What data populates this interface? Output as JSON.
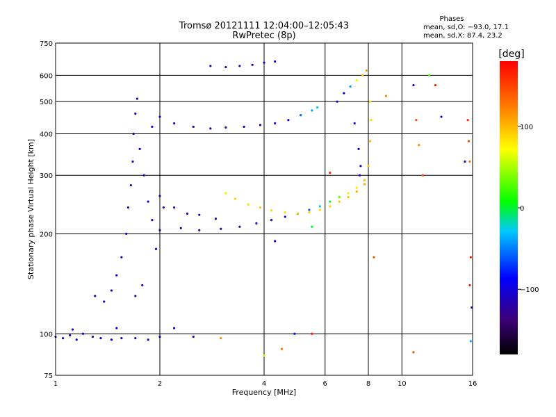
{
  "header": {
    "title_line1": "Tromsø 20121111 12:04:00–12:05:43",
    "title_line2": "RwPretec (8p)",
    "stats_title": "Phases",
    "stats_line1": "mean, sd,O: −93.0, 17.1",
    "stats_line2": "mean, sd,X: 87.4, 23.2"
  },
  "colorbar": {
    "unit": "[deg]",
    "range": [
      -180,
      180
    ],
    "tick_labels": [
      "100",
      "0",
      "−100"
    ],
    "tick_values": [
      100,
      0,
      -100
    ]
  },
  "chart_data": {
    "type": "scatter",
    "xlabel": "Frequency [MHz]",
    "ylabel": "Stationary phase Virtual Height [km]",
    "x_scale": "log",
    "y_scale": "log",
    "xlim": [
      1,
      16
    ],
    "ylim": [
      75,
      750
    ],
    "grid": true,
    "x_ticks": [
      1,
      2,
      4,
      6,
      8,
      10,
      16
    ],
    "x_tick_labels": [
      "1",
      "2",
      "4",
      "6",
      "8",
      "10",
      "16"
    ],
    "y_ticks": [
      75,
      100,
      200,
      300,
      400,
      500,
      600,
      750
    ],
    "y_tick_labels": [
      "75",
      "100",
      "200",
      "300",
      "400",
      "500",
      "600",
      "750"
    ],
    "series": [
      {
        "points": [
          {
            "x": 1.0,
            "y": 98,
            "p": -110
          },
          {
            "x": 1.05,
            "y": 97,
            "p": -105
          },
          {
            "x": 1.1,
            "y": 99,
            "p": -112
          },
          {
            "x": 1.15,
            "y": 96,
            "p": -108
          },
          {
            "x": 1.2,
            "y": 100,
            "p": -100
          },
          {
            "x": 1.28,
            "y": 98,
            "p": -115
          },
          {
            "x": 1.35,
            "y": 97,
            "p": -110
          },
          {
            "x": 1.45,
            "y": 96,
            "p": -102
          },
          {
            "x": 1.55,
            "y": 97,
            "p": -118
          },
          {
            "x": 1.7,
            "y": 97,
            "p": -110
          },
          {
            "x": 1.85,
            "y": 96,
            "p": -105
          },
          {
            "x": 2.0,
            "y": 98,
            "p": -112
          },
          {
            "x": 1.12,
            "y": 103,
            "p": -85
          },
          {
            "x": 1.5,
            "y": 104,
            "p": -95
          },
          {
            "x": 2.2,
            "y": 104,
            "p": -100
          },
          {
            "x": 2.5,
            "y": 98,
            "p": -110
          },
          {
            "x": 1.3,
            "y": 130,
            "p": -110
          },
          {
            "x": 1.38,
            "y": 125,
            "p": -115
          },
          {
            "x": 1.45,
            "y": 135,
            "p": -105
          },
          {
            "x": 1.5,
            "y": 150,
            "p": -108
          },
          {
            "x": 1.55,
            "y": 170,
            "p": -112
          },
          {
            "x": 1.6,
            "y": 200,
            "p": -100
          },
          {
            "x": 1.62,
            "y": 240,
            "p": -110
          },
          {
            "x": 1.65,
            "y": 280,
            "p": -118
          },
          {
            "x": 1.67,
            "y": 330,
            "p": -105
          },
          {
            "x": 1.68,
            "y": 400,
            "p": -112
          },
          {
            "x": 1.7,
            "y": 460,
            "p": -108
          },
          {
            "x": 1.72,
            "y": 510,
            "p": -115
          },
          {
            "x": 1.75,
            "y": 360,
            "p": -100
          },
          {
            "x": 1.8,
            "y": 300,
            "p": -110
          },
          {
            "x": 1.85,
            "y": 250,
            "p": -105
          },
          {
            "x": 1.9,
            "y": 220,
            "p": -112
          },
          {
            "x": 1.95,
            "y": 180,
            "p": -110
          },
          {
            "x": 1.78,
            "y": 140,
            "p": -95
          },
          {
            "x": 1.7,
            "y": 130,
            "p": -108
          },
          {
            "x": 1.9,
            "y": 420,
            "p": -102
          },
          {
            "x": 2.0,
            "y": 260,
            "p": -108
          },
          {
            "x": 2.05,
            "y": 240,
            "p": -112
          },
          {
            "x": 2.0,
            "y": 450,
            "p": -105
          },
          {
            "x": 2.2,
            "y": 430,
            "p": -110
          },
          {
            "x": 2.5,
            "y": 420,
            "p": -112
          },
          {
            "x": 2.8,
            "y": 415,
            "p": -108
          },
          {
            "x": 3.1,
            "y": 418,
            "p": -115
          },
          {
            "x": 3.5,
            "y": 420,
            "p": -110
          },
          {
            "x": 3.9,
            "y": 425,
            "p": -105
          },
          {
            "x": 4.3,
            "y": 430,
            "p": -100
          },
          {
            "x": 4.7,
            "y": 440,
            "p": -95
          },
          {
            "x": 5.1,
            "y": 455,
            "p": -60
          },
          {
            "x": 5.5,
            "y": 470,
            "p": -40
          },
          {
            "x": 5.7,
            "y": 480,
            "p": -20
          },
          {
            "x": 2.8,
            "y": 640,
            "p": -110
          },
          {
            "x": 3.1,
            "y": 635,
            "p": -115
          },
          {
            "x": 3.4,
            "y": 640,
            "p": -108
          },
          {
            "x": 3.7,
            "y": 645,
            "p": -112
          },
          {
            "x": 4.0,
            "y": 655,
            "p": -105
          },
          {
            "x": 4.3,
            "y": 660,
            "p": -100
          },
          {
            "x": 2.0,
            "y": 205,
            "p": -120
          },
          {
            "x": 2.3,
            "y": 208,
            "p": -125
          },
          {
            "x": 2.6,
            "y": 205,
            "p": -130
          },
          {
            "x": 3.0,
            "y": 207,
            "p": -128
          },
          {
            "x": 3.4,
            "y": 210,
            "p": -125
          },
          {
            "x": 3.8,
            "y": 215,
            "p": -120
          },
          {
            "x": 4.2,
            "y": 220,
            "p": -110
          },
          {
            "x": 4.6,
            "y": 225,
            "p": -100
          },
          {
            "x": 5.0,
            "y": 230,
            "p": -80
          },
          {
            "x": 5.4,
            "y": 236,
            "p": -60
          },
          {
            "x": 5.8,
            "y": 242,
            "p": -30
          },
          {
            "x": 6.2,
            "y": 250,
            "p": 0
          },
          {
            "x": 6.6,
            "y": 258,
            "p": 30
          },
          {
            "x": 7.0,
            "y": 265,
            "p": 60
          },
          {
            "x": 7.4,
            "y": 275,
            "p": 80
          },
          {
            "x": 7.8,
            "y": 290,
            "p": 100
          },
          {
            "x": 2.2,
            "y": 240,
            "p": -110
          },
          {
            "x": 2.4,
            "y": 230,
            "p": -112
          },
          {
            "x": 2.6,
            "y": 228,
            "p": -108
          },
          {
            "x": 2.9,
            "y": 222,
            "p": -115
          },
          {
            "x": 3.1,
            "y": 265,
            "p": 80
          },
          {
            "x": 3.3,
            "y": 255,
            "p": 90
          },
          {
            "x": 3.6,
            "y": 245,
            "p": 85
          },
          {
            "x": 3.9,
            "y": 240,
            "p": 95
          },
          {
            "x": 4.2,
            "y": 235,
            "p": 90
          },
          {
            "x": 4.6,
            "y": 232,
            "p": 85
          },
          {
            "x": 5.0,
            "y": 230,
            "p": 95
          },
          {
            "x": 5.4,
            "y": 232,
            "p": 90
          },
          {
            "x": 5.8,
            "y": 236,
            "p": 88
          },
          {
            "x": 6.2,
            "y": 242,
            "p": 92
          },
          {
            "x": 6.6,
            "y": 250,
            "p": 95
          },
          {
            "x": 7.0,
            "y": 258,
            "p": 100
          },
          {
            "x": 7.4,
            "y": 268,
            "p": 105
          },
          {
            "x": 7.8,
            "y": 282,
            "p": 110
          },
          {
            "x": 8.0,
            "y": 320,
            "p": 95
          },
          {
            "x": 8.1,
            "y": 380,
            "p": 100
          },
          {
            "x": 8.15,
            "y": 440,
            "p": 90
          },
          {
            "x": 8.1,
            "y": 500,
            "p": 85
          },
          {
            "x": 6.5,
            "y": 500,
            "p": -100
          },
          {
            "x": 6.8,
            "y": 530,
            "p": -90
          },
          {
            "x": 7.1,
            "y": 555,
            "p": -40
          },
          {
            "x": 7.4,
            "y": 580,
            "p": 60
          },
          {
            "x": 7.7,
            "y": 600,
            "p": 100
          },
          {
            "x": 7.9,
            "y": 620,
            "p": 110
          },
          {
            "x": 7.3,
            "y": 430,
            "p": -110
          },
          {
            "x": 7.5,
            "y": 360,
            "p": -108
          },
          {
            "x": 7.6,
            "y": 320,
            "p": -100
          },
          {
            "x": 7.55,
            "y": 300,
            "p": -95
          },
          {
            "x": 8.3,
            "y": 170,
            "p": 140
          },
          {
            "x": 9.0,
            "y": 520,
            "p": 120
          },
          {
            "x": 10.8,
            "y": 560,
            "p": -100
          },
          {
            "x": 12.0,
            "y": 600,
            "p": 20
          },
          {
            "x": 12.5,
            "y": 560,
            "p": 170
          },
          {
            "x": 13.0,
            "y": 450,
            "p": -110
          },
          {
            "x": 11.0,
            "y": 440,
            "p": 150
          },
          {
            "x": 11.2,
            "y": 370,
            "p": 120
          },
          {
            "x": 11.5,
            "y": 300,
            "p": 150
          },
          {
            "x": 15.5,
            "y": 440,
            "p": 160
          },
          {
            "x": 15.6,
            "y": 380,
            "p": 150
          },
          {
            "x": 15.7,
            "y": 330,
            "p": 130
          },
          {
            "x": 15.2,
            "y": 330,
            "p": -110
          },
          {
            "x": 15.8,
            "y": 170,
            "p": 170
          },
          {
            "x": 15.7,
            "y": 140,
            "p": 170
          },
          {
            "x": 15.9,
            "y": 120,
            "p": -100
          },
          {
            "x": 15.8,
            "y": 95,
            "p": -40
          },
          {
            "x": 10.8,
            "y": 88,
            "p": 150
          },
          {
            "x": 6.2,
            "y": 305,
            "p": 170
          },
          {
            "x": 5.5,
            "y": 100,
            "p": 170
          },
          {
            "x": 4.9,
            "y": 100,
            "p": -80
          },
          {
            "x": 5.5,
            "y": 210,
            "p": 0
          },
          {
            "x": 4.5,
            "y": 90,
            "p": 130
          },
          {
            "x": 4.0,
            "y": 86,
            "p": 60
          },
          {
            "x": 3.0,
            "y": 97,
            "p": 120
          },
          {
            "x": 4.3,
            "y": 190,
            "p": -100
          }
        ]
      }
    ]
  }
}
